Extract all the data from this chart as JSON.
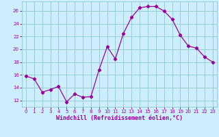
{
  "x": [
    0,
    1,
    2,
    3,
    4,
    5,
    6,
    7,
    8,
    9,
    10,
    11,
    12,
    13,
    14,
    15,
    16,
    17,
    18,
    19,
    20,
    21,
    22,
    23
  ],
  "y": [
    15.8,
    15.4,
    13.3,
    13.7,
    14.2,
    11.8,
    13.0,
    12.5,
    12.6,
    16.8,
    20.4,
    18.5,
    22.5,
    25.0,
    26.5,
    26.7,
    26.7,
    26.0,
    24.7,
    22.2,
    20.5,
    20.2,
    18.8,
    18.0
  ],
  "line_color": "#990099",
  "marker": "D",
  "marker_size": 2.2,
  "bg_color": "#cceeff",
  "grid_color": "#99cccc",
  "xlabel": "Windchill (Refroidissement éolien,°C)",
  "xlabel_color": "#990099",
  "tick_color": "#990099",
  "xlim": [
    -0.5,
    23.5
  ],
  "ylim": [
    11.0,
    27.5
  ],
  "yticks": [
    12,
    14,
    16,
    18,
    20,
    22,
    24,
    26
  ],
  "xticks": [
    0,
    1,
    2,
    3,
    4,
    5,
    6,
    7,
    8,
    9,
    10,
    11,
    12,
    13,
    14,
    15,
    16,
    17,
    18,
    19,
    20,
    21,
    22,
    23
  ],
  "tick_fontsize": 5.0,
  "xlabel_fontsize": 6.0,
  "linewidth": 0.9
}
